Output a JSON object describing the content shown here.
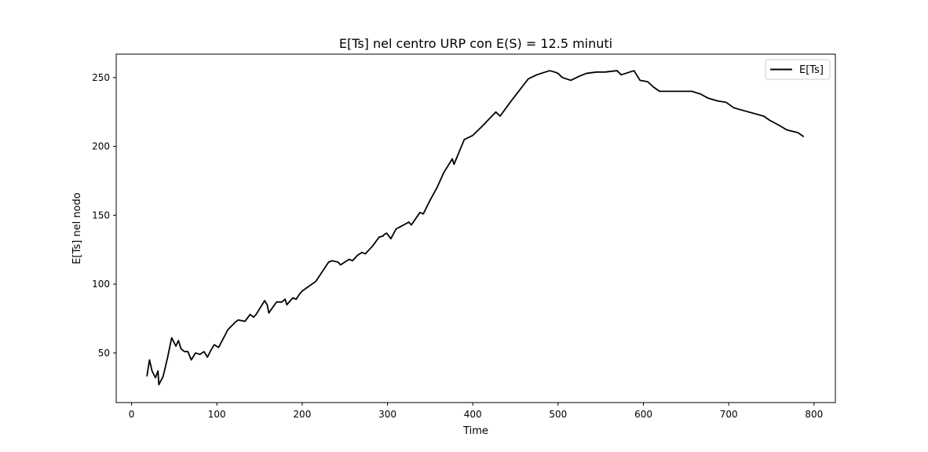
{
  "chart_data": {
    "type": "line",
    "title": "E[Ts] nel centro URP con E(S) = 12.5 minuti",
    "xlabel": "Time",
    "ylabel": "E[Ts] nel nodo",
    "xlim": [
      -18,
      825
    ],
    "ylim": [
      14,
      267
    ],
    "xticks": [
      0,
      100,
      200,
      300,
      400,
      500,
      600,
      700,
      800
    ],
    "yticks": [
      50,
      100,
      150,
      200,
      250
    ],
    "grid": false,
    "legend": {
      "position": "top-right",
      "entries": [
        "E[Ts]"
      ]
    },
    "series": [
      {
        "name": "E[Ts]",
        "color": "#000000",
        "x": [
          18,
          21,
          24,
          28,
          31,
          32,
          37,
          42,
          47,
          52,
          55,
          58,
          62,
          66,
          70,
          75,
          80,
          85,
          89,
          93,
          97,
          102,
          113,
          121,
          125,
          133,
          139,
          143,
          146,
          156,
          159,
          161,
          163,
          170,
          176,
          180,
          182,
          189,
          193,
          196,
          200,
          216,
          231,
          235,
          242,
          245,
          250,
          255,
          259,
          265,
          270,
          274,
          283,
          290,
          295,
          296,
          299,
          304,
          310,
          322,
          325,
          328,
          338,
          342,
          350,
          358,
          366,
          376,
          378,
          390,
          400,
          410,
          427,
          432,
          445,
          465,
          475,
          490,
          496,
          500,
          505,
          515,
          525,
          533,
          545,
          555,
          569,
          574,
          589,
          592,
          596,
          605,
          612,
          619,
          628,
          636,
          648,
          657,
          667,
          676,
          687,
          697,
          706,
          741,
          748,
          757,
          760,
          768,
          781,
          788
        ],
        "y": [
          33,
          45,
          37,
          32,
          37,
          27,
          33,
          46,
          61,
          55,
          59,
          53,
          51,
          51,
          45,
          50,
          49,
          51,
          47,
          52,
          56,
          54,
          67,
          72,
          74,
          73,
          78,
          76,
          78,
          88,
          85,
          79,
          81,
          87,
          87,
          89,
          85,
          90,
          89,
          92,
          95,
          102,
          116,
          117,
          116,
          114,
          116,
          118,
          117,
          121,
          123,
          122,
          128,
          134,
          135,
          136,
          137,
          133,
          140,
          144,
          145,
          143,
          152,
          151,
          161,
          170,
          181,
          191,
          187,
          205,
          208,
          214,
          225,
          222,
          233,
          249,
          252,
          255,
          254,
          253,
          250,
          248,
          251,
          253,
          254,
          254,
          255,
          252,
          255,
          252,
          248,
          247,
          243,
          240,
          240,
          240,
          240,
          240,
          238,
          235,
          233,
          232,
          228,
          222,
          219,
          216,
          215,
          212,
          210,
          207
        ]
      }
    ]
  }
}
